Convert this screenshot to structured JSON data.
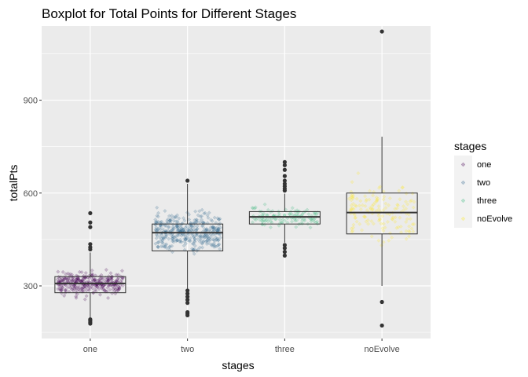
{
  "chart_data": {
    "type": "boxplot",
    "title": "Boxplot for Total Points for Different Stages",
    "xlabel": "stages",
    "ylabel": "totalPts",
    "categories": [
      "one",
      "two",
      "three",
      "noEvolve"
    ],
    "ylim": [
      130,
      1140
    ],
    "y_ticks": [
      300,
      600,
      900
    ],
    "y_tick_labels": [
      "300",
      "600",
      "900"
    ],
    "grid": true,
    "legend": {
      "title": "stages",
      "position": "right",
      "entries": [
        "one",
        "two",
        "three",
        "noEvolve"
      ]
    },
    "colors": {
      "one": "#440154",
      "two": "#31688e",
      "three": "#35b779",
      "noEvolve": "#fde725",
      "panel": "#ebebeb",
      "grid_major": "#ffffff",
      "box": "#333333"
    },
    "series": [
      {
        "name": "one",
        "n_points": 330,
        "jitter_range": [
          180,
          420
        ],
        "box": {
          "whisker_low": 190,
          "q1": 278,
          "median": 308,
          "q3": 330,
          "whisker_high": 408
        },
        "outliers": [
          535,
          505,
          490,
          435,
          425,
          418,
          192,
          188,
          183,
          178
        ]
      },
      {
        "name": "two",
        "n_points": 380,
        "jitter_range": [
          200,
          640
        ],
        "box": {
          "whisker_low": 290,
          "q1": 413,
          "median": 472,
          "q3": 500,
          "whisker_high": 630
        },
        "outliers": [
          640,
          285,
          275,
          265,
          255,
          245,
          215,
          210,
          205
        ]
      },
      {
        "name": "three",
        "n_points": 120,
        "jitter_range": [
          395,
          700
        ],
        "box": {
          "whisker_low": 440,
          "q1": 500,
          "median": 523,
          "q3": 540,
          "whisker_high": 598
        },
        "outliers": [
          700,
          690,
          675,
          655,
          640,
          630,
          622,
          614,
          608,
          432,
          422,
          410,
          398
        ]
      },
      {
        "name": "noEvolve",
        "n_points": 150,
        "jitter_range": [
          250,
          780
        ],
        "box": {
          "whisker_low": 300,
          "q1": 468,
          "median": 537,
          "q3": 600,
          "whisker_high": 782
        },
        "outliers": [
          1122,
          248,
          172
        ]
      }
    ]
  }
}
